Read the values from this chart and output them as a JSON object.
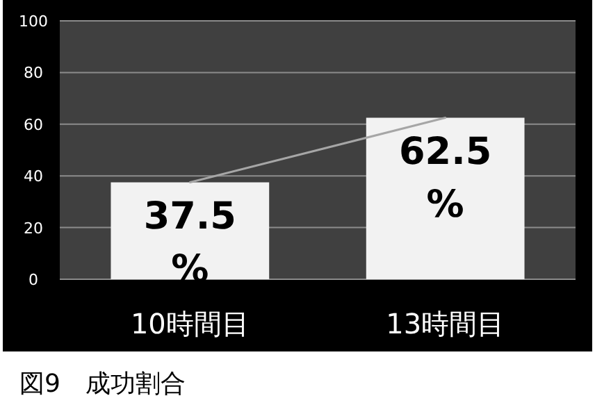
{
  "chart_data": {
    "type": "bar",
    "categories": [
      "10時間目",
      "13時間目"
    ],
    "series": [
      {
        "color": "#f2f2f2",
        "values": [
          37.5,
          62.5
        ],
        "value_labels": [
          "37.5%",
          "62.5%"
        ]
      },
      {
        "type": "line",
        "color": "#a6a6a6",
        "values": [
          37.5,
          62.5
        ]
      }
    ],
    "ylim": [
      0,
      100
    ],
    "yticks": [
      0,
      20,
      40,
      60,
      80,
      100
    ],
    "grid": "y",
    "marker": "none",
    "annotations": [
      "図9　成功割合"
    ]
  }
}
